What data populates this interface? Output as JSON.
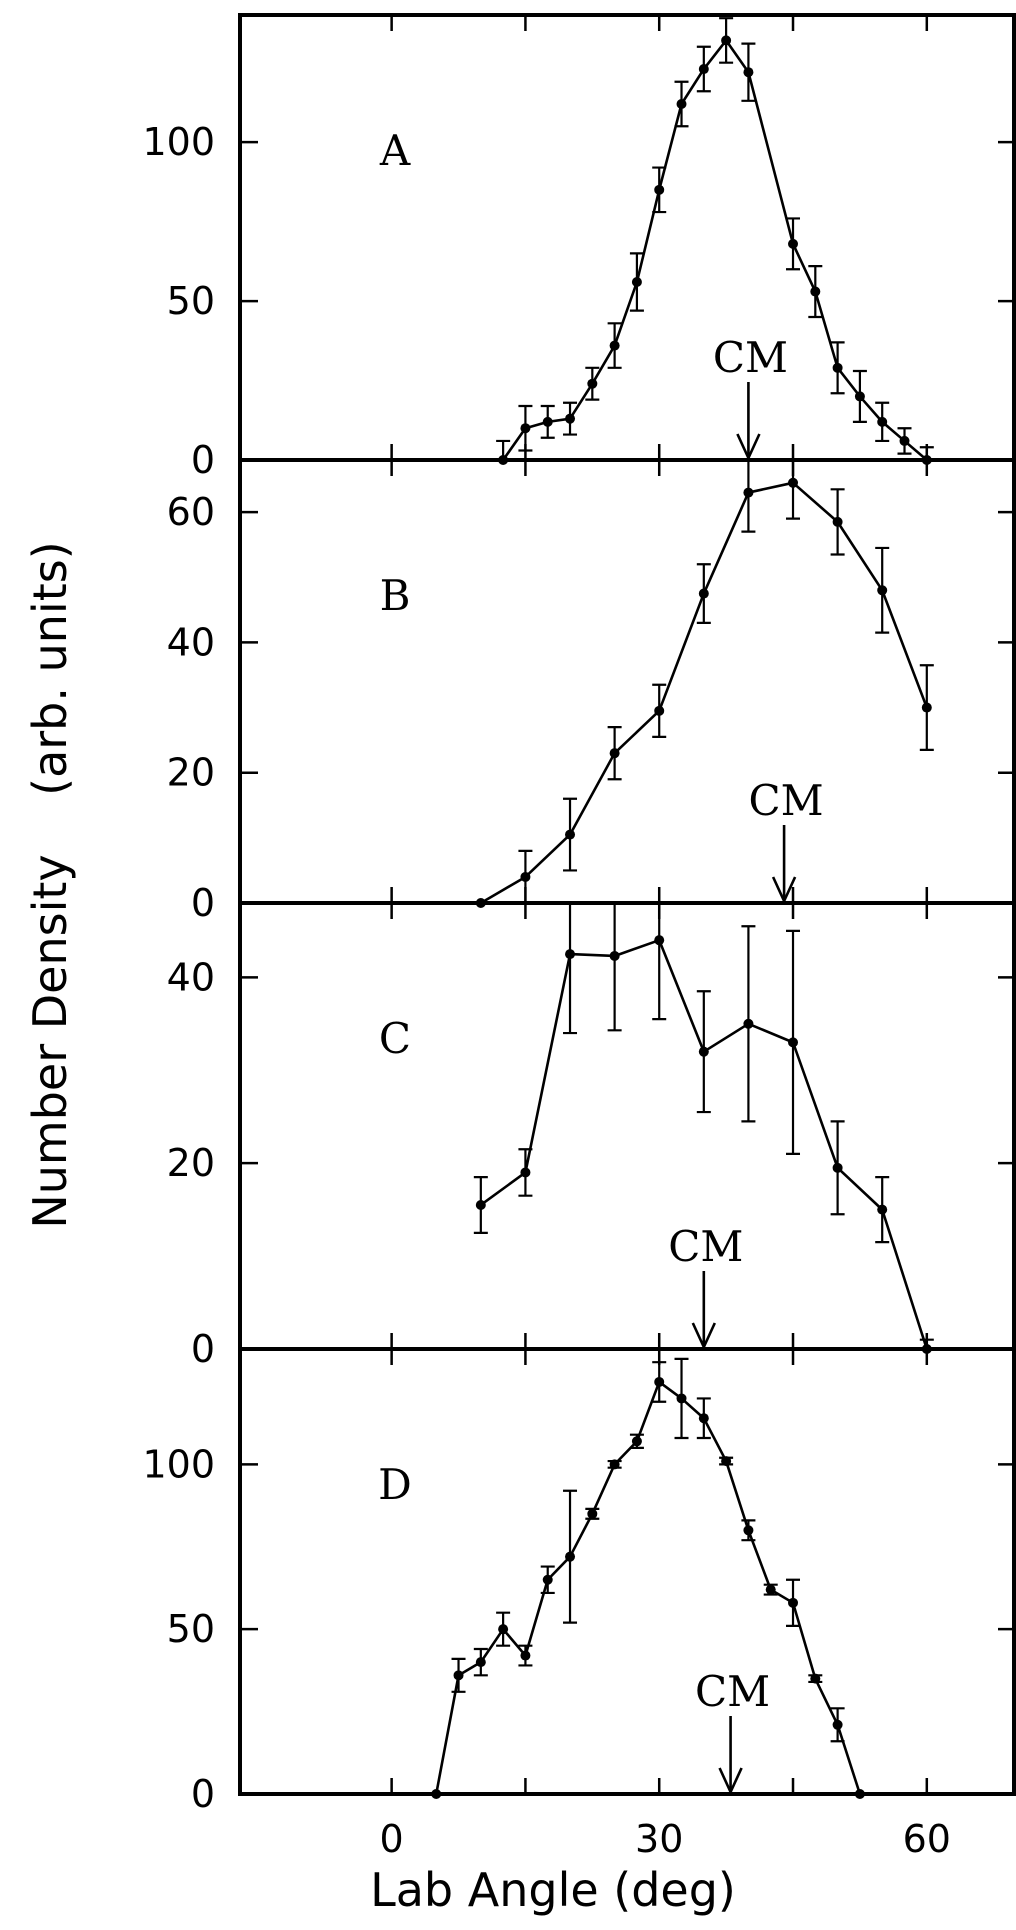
{
  "chart_data": {
    "type": "line",
    "ylabel": "Number Density    (arb. units)",
    "xlabel": "Lab Angle (deg)",
    "xlim": [
      -17,
      70
    ],
    "xticks": [
      0,
      30,
      60
    ],
    "minor_xticks": [
      0,
      15,
      30,
      45,
      60
    ],
    "panels": [
      {
        "label": "A",
        "ylim": [
          0,
          140
        ],
        "yticks": [
          0,
          50,
          100
        ],
        "cm_angle": 40,
        "cm_label": "CM",
        "series": [
          {
            "x": [
              12.5,
              15,
              17.5,
              20,
              22.5,
              25,
              27.5,
              30,
              32.5,
              35,
              37.5,
              40,
              45,
              47.5,
              50,
              52.5,
              55,
              57.5,
              60
            ],
            "values": [
              0,
              10,
              12,
              13,
              24,
              36,
              56,
              85,
              112,
              123,
              132,
              122,
              68,
              53,
              29,
              20,
              12,
              6,
              0
            ],
            "errors": [
              6,
              7,
              5,
              5,
              5,
              7,
              9,
              7,
              7,
              7,
              7,
              9,
              8,
              8,
              8,
              8,
              6,
              4,
              4
            ]
          }
        ]
      },
      {
        "label": "B",
        "ylim": [
          0,
          68
        ],
        "yticks": [
          0,
          20,
          40,
          60
        ],
        "cm_angle": 44,
        "cm_label": "CM",
        "series": [
          {
            "x": [
              10,
              15,
              20,
              25,
              30,
              35,
              40,
              45,
              50,
              55,
              60
            ],
            "values": [
              0,
              4,
              10.5,
              23,
              29.5,
              47.5,
              63,
              64.5,
              58.5,
              48,
              30
            ],
            "errors": [
              0,
              4,
              5.5,
              4,
              4,
              4.5,
              6,
              5.5,
              5,
              6.5,
              6.5
            ]
          }
        ]
      },
      {
        "label": "C",
        "ylim": [
          0,
          48
        ],
        "yticks": [
          0,
          20,
          40
        ],
        "cm_angle": 35,
        "cm_label": "CM",
        "series": [
          {
            "x": [
              10,
              15,
              20,
              25,
              30,
              35,
              40,
              45,
              50,
              55,
              60
            ],
            "values": [
              15.5,
              19,
              42.5,
              42.3,
              44,
              32,
              35,
              33,
              19.5,
              15,
              0
            ],
            "errors": [
              3,
              2.5,
              8.5,
              8,
              8.5,
              6.5,
              10.5,
              12,
              5,
              3.5,
              1
            ]
          }
        ]
      },
      {
        "label": "D",
        "ylim": [
          0,
          135
        ],
        "yticks": [
          0,
          50,
          100
        ],
        "cm_angle": 38,
        "cm_label": "CM",
        "series": [
          {
            "x": [
              5,
              7.5,
              10,
              12.5,
              15,
              17.5,
              20,
              22.5,
              25,
              27.5,
              30,
              32.5,
              35,
              37.5,
              40,
              42.5,
              45,
              47.5,
              50,
              52.5
            ],
            "values": [
              0,
              36,
              40,
              50,
              42,
              65,
              72,
              85,
              100,
              107,
              125,
              120,
              114,
              101,
              80,
              62,
              58,
              35,
              21,
              0
            ],
            "errors": [
              0,
              5,
              4,
              5,
              3,
              4,
              20,
              1.5,
              1,
              2,
              6,
              12,
              6,
              1,
              3,
              1.5,
              7,
              1,
              5,
              0
            ]
          }
        ]
      }
    ]
  }
}
